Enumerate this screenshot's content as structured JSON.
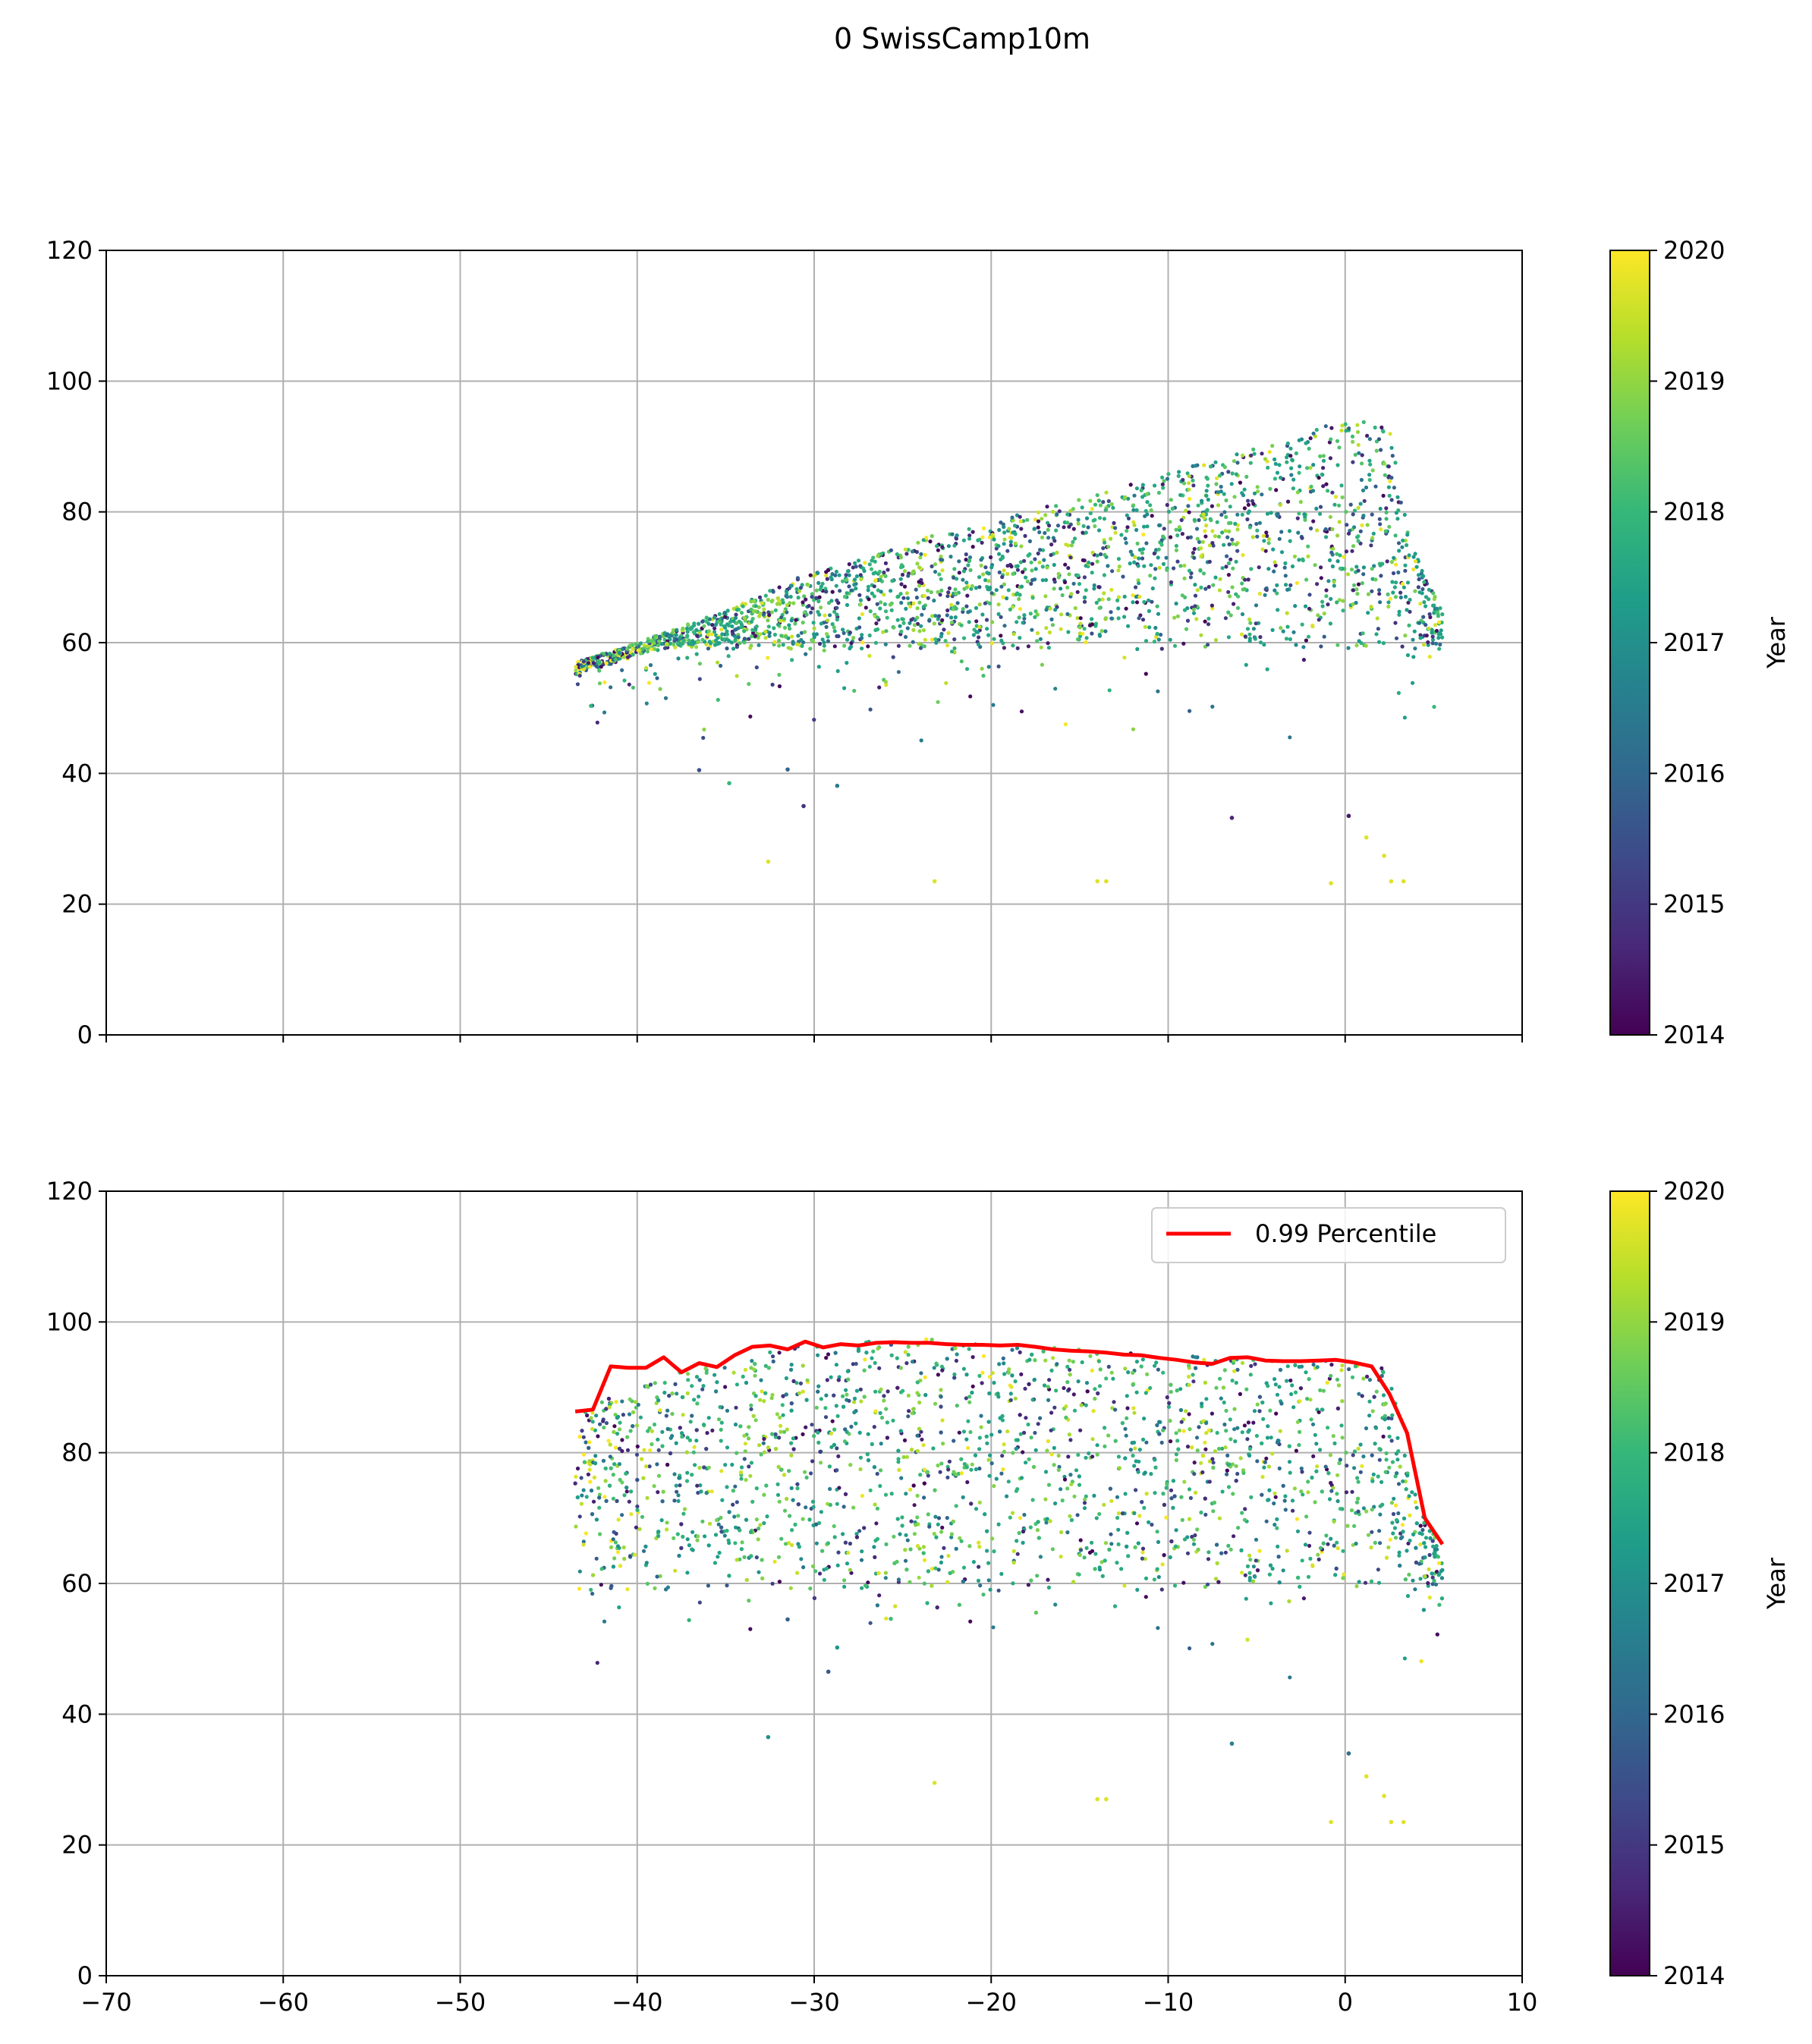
{
  "figure": {
    "suptitle": "0 SwissCamp10m"
  },
  "colormap": {
    "name": "viridis",
    "stops": [
      "#440154",
      "#482878",
      "#3e4989",
      "#31688e",
      "#26828e",
      "#1f9e89",
      "#35b779",
      "#6ece58",
      "#b5de2b",
      "#fde725"
    ]
  },
  "colors": {
    "grid": "#b0b0b0",
    "axes": "#000000",
    "percentile_line": "#ff0000"
  },
  "chart_data": [
    {
      "type": "scatter",
      "title": "",
      "xlabel": "",
      "ylabel": "",
      "xlim": [
        -70,
        10
      ],
      "ylim": [
        0,
        120
      ],
      "xticks": [
        -70,
        -60,
        -50,
        -40,
        -30,
        -20,
        -10,
        0,
        10
      ],
      "yticks": [
        0,
        20,
        40,
        60,
        80,
        100,
        120
      ],
      "x_tick_labels_visible": false,
      "grid": true,
      "color_by": "Year",
      "upper_envelope": [
        [
          -43.5,
          57
        ],
        [
          -40,
          60
        ],
        [
          -35,
          65
        ],
        [
          -30,
          71
        ],
        [
          -25,
          75
        ],
        [
          -20,
          79
        ],
        [
          -15,
          82
        ],
        [
          -10,
          86
        ],
        [
          -5,
          90
        ],
        [
          -2,
          92.5
        ],
        [
          0,
          94
        ],
        [
          1,
          94
        ],
        [
          2.5,
          93.5
        ],
        [
          3,
          85
        ],
        [
          3.5,
          78
        ],
        [
          4.5,
          70
        ],
        [
          5.5,
          65
        ]
      ],
      "dense_lower_bound": 59,
      "outliers": [
        [
          -32.6,
          26.5
        ],
        [
          -23.2,
          23.5
        ],
        [
          -14,
          23.5
        ],
        [
          -13.5,
          23.5
        ],
        [
          -6.4,
          33.2
        ],
        [
          -0.8,
          23.2
        ],
        [
          0.2,
          33.5
        ],
        [
          1.2,
          30.2
        ],
        [
          2.2,
          27.4
        ],
        [
          2.6,
          23.5
        ],
        [
          3.3,
          23.5
        ],
        [
          -30.6,
          35
        ],
        [
          -28.7,
          38.1
        ],
        [
          -34.8,
          38.5
        ],
        [
          -36.5,
          40.5
        ],
        [
          -31.5,
          40.6
        ]
      ],
      "colorbar": {
        "label": "Year",
        "range": [
          2014,
          2020
        ],
        "ticks": [
          "2014",
          "2015",
          "2016",
          "2017",
          "2018",
          "2019",
          "2020"
        ]
      }
    },
    {
      "type": "scatter",
      "title": "",
      "xlabel": "",
      "ylabel": "",
      "xlim": [
        -70,
        10
      ],
      "ylim": [
        0,
        120
      ],
      "xticks": [
        -70,
        -60,
        -50,
        -40,
        -30,
        -20,
        -10,
        0,
        10
      ],
      "yticks": [
        0,
        20,
        40,
        60,
        80,
        100,
        120
      ],
      "x_tick_labels_visible": true,
      "grid": true,
      "color_by": "Year",
      "upper_envelope": [
        [
          -43.5,
          86
        ],
        [
          -42,
          88
        ],
        [
          -40,
          90
        ],
        [
          -38,
          92
        ],
        [
          -35,
          94
        ],
        [
          -32,
          96
        ],
        [
          -28,
          97
        ],
        [
          -25,
          97.5
        ],
        [
          -20,
          97
        ],
        [
          -15,
          96
        ],
        [
          -10,
          95
        ],
        [
          -5,
          94.5
        ],
        [
          0,
          94
        ],
        [
          1,
          94
        ],
        [
          2.5,
          93.5
        ],
        [
          3,
          85
        ],
        [
          3.5,
          78
        ],
        [
          4.5,
          70
        ],
        [
          5.5,
          65
        ]
      ],
      "dense_lower_bound": 59,
      "outliers": [
        [
          -32.6,
          36.5
        ],
        [
          -23.2,
          29.5
        ],
        [
          -14,
          27
        ],
        [
          -13.5,
          27
        ],
        [
          -6.4,
          35.5
        ],
        [
          -0.8,
          23.5
        ],
        [
          0.2,
          34
        ],
        [
          1.2,
          30.5
        ],
        [
          2.2,
          27.5
        ],
        [
          2.6,
          23.5
        ],
        [
          3.3,
          23.5
        ],
        [
          -29.2,
          46.5
        ],
        [
          -28.7,
          50.2
        ],
        [
          -31.5,
          54.5
        ]
      ],
      "legend": {
        "position": "upper right",
        "entries": [
          "0.99 Percentile"
        ]
      },
      "series": [
        {
          "name": "0.99 Percentile",
          "type": "line",
          "x": [
            -43.5,
            -42.5,
            -41.5,
            -40.5,
            -39.5,
            -38.5,
            -37.5,
            -36.5,
            -35.5,
            -34.5,
            -33.5,
            -32.5,
            -31.5,
            -30.5,
            -29.5,
            -28.5,
            -27.5,
            -26.5,
            -25.5,
            -24.5,
            -23.5,
            -22.5,
            -21.5,
            -20.5,
            -19.5,
            -18.5,
            -17.5,
            -16.5,
            -15.5,
            -14.5,
            -13.5,
            -12.5,
            -11.5,
            -10.5,
            -9.5,
            -8.5,
            -7.5,
            -6.5,
            -5.5,
            -4.5,
            -3.5,
            -2.5,
            -1.5,
            -0.5,
            0.5,
            1.5,
            2.5,
            3.5,
            4.5,
            5.5
          ],
          "y": [
            86.3,
            86.6,
            93.2,
            93.0,
            93.0,
            94.6,
            92.3,
            93.7,
            93.1,
            94.9,
            96.2,
            96.4,
            95.8,
            97.0,
            96.1,
            96.6,
            96.4,
            96.8,
            96.9,
            96.8,
            96.8,
            96.6,
            96.5,
            96.5,
            96.4,
            96.5,
            96.2,
            95.8,
            95.6,
            95.5,
            95.3,
            95.0,
            94.9,
            94.5,
            94.2,
            93.8,
            93.6,
            94.5,
            94.6,
            94.1,
            94.0,
            94.0,
            94.1,
            94.2,
            93.8,
            93.2,
            89.0,
            83.0,
            70.0,
            66.0
          ]
        }
      ],
      "colorbar": {
        "label": "Year",
        "range": [
          2014,
          2020
        ],
        "ticks": [
          "2014",
          "2015",
          "2016",
          "2017",
          "2018",
          "2019",
          "2020"
        ]
      }
    }
  ]
}
